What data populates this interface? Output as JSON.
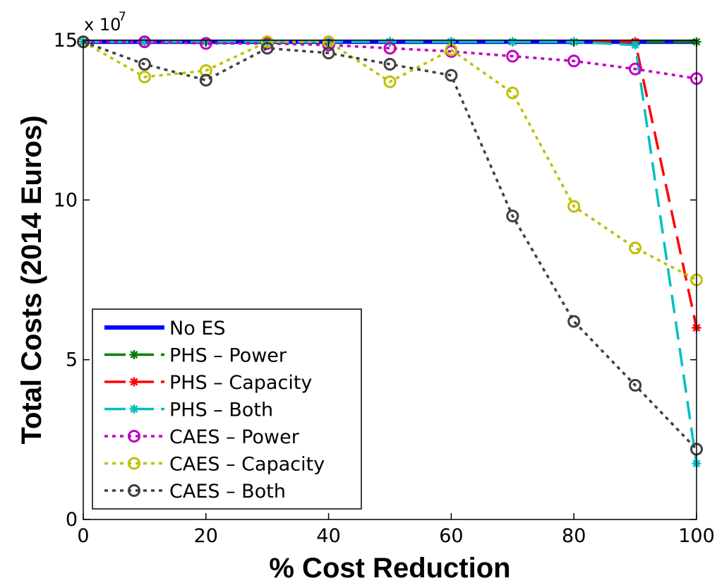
{
  "chart_data": {
    "type": "line",
    "title": "",
    "xlabel": "% Cost Reduction",
    "ylabel": "Total Costs (2014 Euros)",
    "y_multiplier_label": "x 10",
    "y_multiplier_exponent": "7",
    "xlim": [
      0,
      100
    ],
    "ylim": [
      0,
      15
    ],
    "x_ticks": [
      0,
      20,
      40,
      60,
      80,
      100
    ],
    "y_ticks": [
      0,
      5,
      10,
      15
    ],
    "grid": false,
    "legend_position": "bottom-left",
    "x": [
      0,
      10,
      20,
      30,
      40,
      50,
      60,
      70,
      80,
      90,
      100
    ],
    "series": [
      {
        "name": "No ES",
        "color": "#0000ff",
        "dash": "solid",
        "marker": "none",
        "values": [
          14.95,
          14.95,
          14.95,
          14.95,
          14.95,
          14.95,
          14.95,
          14.95,
          14.95,
          14.95,
          14.95
        ]
      },
      {
        "name": "PHS – Power",
        "color": "#007f00",
        "dash": "dashed",
        "marker": "asterisk",
        "values": [
          14.95,
          14.95,
          14.95,
          14.95,
          14.95,
          14.95,
          14.95,
          14.95,
          14.95,
          14.95,
          14.95
        ]
      },
      {
        "name": "PHS – Capacity",
        "color": "#ff0000",
        "dash": "dashed",
        "marker": "asterisk",
        "values": [
          14.95,
          14.95,
          14.95,
          14.95,
          14.95,
          14.95,
          14.95,
          14.95,
          14.95,
          14.95,
          6.0
        ]
      },
      {
        "name": "PHS – Both",
        "color": "#00bfbf",
        "dash": "dashed",
        "marker": "asterisk",
        "values": [
          14.95,
          14.95,
          14.95,
          14.95,
          14.95,
          14.95,
          14.95,
          14.95,
          14.95,
          14.85,
          1.75
        ]
      },
      {
        "name": "CAES – Power",
        "color": "#bf00bf",
        "dash": "dotted",
        "marker": "circle",
        "values": [
          14.95,
          14.95,
          14.9,
          14.9,
          14.85,
          14.75,
          14.65,
          14.5,
          14.35,
          14.1,
          13.8
        ]
      },
      {
        "name": "CAES – Capacity",
        "color": "#bfbf00",
        "dash": "dotted",
        "marker": "circle",
        "values": [
          14.95,
          13.85,
          14.05,
          14.95,
          14.95,
          13.7,
          14.7,
          13.35,
          9.8,
          8.5,
          7.5
        ]
      },
      {
        "name": "CAES – Both",
        "color": "#404040",
        "dash": "dotted",
        "marker": "circle",
        "values": [
          14.95,
          14.25,
          13.75,
          14.75,
          14.6,
          14.25,
          13.9,
          9.5,
          6.2,
          4.2,
          2.2
        ]
      }
    ]
  }
}
